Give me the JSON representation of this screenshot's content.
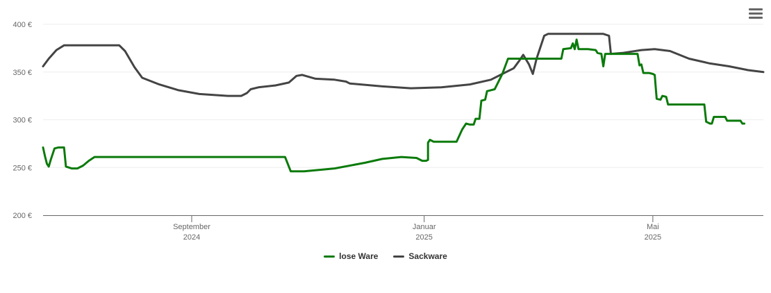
{
  "chart_data": {
    "type": "line",
    "xlim": [
      "2024-06-15",
      "2025-06-28"
    ],
    "ylim": [
      200,
      400
    ],
    "yticks": [
      {
        "value": 200,
        "label": "200 €"
      },
      {
        "value": 250,
        "label": "250 €"
      },
      {
        "value": 300,
        "label": "300 €"
      },
      {
        "value": 350,
        "label": "350 €"
      },
      {
        "value": 400,
        "label": "400 €"
      }
    ],
    "xticks": [
      {
        "date": "2024-09-01",
        "label1": "September",
        "label2": "2024"
      },
      {
        "date": "2025-01-01",
        "label1": "Januar",
        "label2": "2025"
      },
      {
        "date": "2025-05-01",
        "label1": "Mai",
        "label2": "2025"
      }
    ],
    "legend_position": "bottom-center",
    "series": [
      {
        "name": "lose Ware",
        "color": "#0a7a0a",
        "points": [
          [
            "2024-06-15",
            271
          ],
          [
            "2024-06-16",
            262
          ],
          [
            "2024-06-17",
            254
          ],
          [
            "2024-06-18",
            251
          ],
          [
            "2024-06-19",
            258
          ],
          [
            "2024-06-21",
            270
          ],
          [
            "2024-06-23",
            271
          ],
          [
            "2024-06-26",
            271
          ],
          [
            "2024-06-27",
            251
          ],
          [
            "2024-06-30",
            249
          ],
          [
            "2024-07-03",
            249
          ],
          [
            "2024-07-06",
            252
          ],
          [
            "2024-07-09",
            257
          ],
          [
            "2024-07-12",
            261
          ],
          [
            "2024-07-20",
            261
          ],
          [
            "2024-08-15",
            261
          ],
          [
            "2024-09-20",
            261
          ],
          [
            "2024-10-15",
            261
          ],
          [
            "2024-10-20",
            261
          ],
          [
            "2024-10-23",
            246
          ],
          [
            "2024-10-30",
            246
          ],
          [
            "2024-11-15",
            249
          ],
          [
            "2024-12-01",
            255
          ],
          [
            "2024-12-10",
            259
          ],
          [
            "2024-12-20",
            261
          ],
          [
            "2024-12-28",
            260
          ],
          [
            "2024-12-31",
            257
          ],
          [
            "2025-01-02",
            257
          ],
          [
            "2025-01-03",
            258
          ],
          [
            "2025-01-03",
            276
          ],
          [
            "2025-01-04",
            279
          ],
          [
            "2025-01-06",
            277
          ],
          [
            "2025-01-10",
            277
          ],
          [
            "2025-01-18",
            277
          ],
          [
            "2025-01-21",
            290
          ],
          [
            "2025-01-23",
            296
          ],
          [
            "2025-01-25",
            295
          ],
          [
            "2025-01-27",
            295
          ],
          [
            "2025-01-28",
            301
          ],
          [
            "2025-01-30",
            301
          ],
          [
            "2025-01-31",
            320
          ],
          [
            "2025-02-02",
            321
          ],
          [
            "2025-02-03",
            330
          ],
          [
            "2025-02-05",
            331
          ],
          [
            "2025-02-07",
            332
          ],
          [
            "2025-02-11",
            348
          ],
          [
            "2025-02-14",
            364
          ],
          [
            "2025-02-20",
            364
          ],
          [
            "2025-03-01",
            364
          ],
          [
            "2025-03-14",
            364
          ],
          [
            "2025-03-15",
            374
          ],
          [
            "2025-03-19",
            375
          ],
          [
            "2025-03-20",
            380
          ],
          [
            "2025-03-21",
            374
          ],
          [
            "2025-03-22",
            384
          ],
          [
            "2025-03-23",
            374
          ],
          [
            "2025-03-28",
            374
          ],
          [
            "2025-04-01",
            373
          ],
          [
            "2025-04-02",
            370
          ],
          [
            "2025-04-04",
            369
          ],
          [
            "2025-04-05",
            356
          ],
          [
            "2025-04-06",
            369
          ],
          [
            "2025-04-10",
            369
          ],
          [
            "2025-04-20",
            369
          ],
          [
            "2025-04-23",
            369
          ],
          [
            "2025-04-24",
            357
          ],
          [
            "2025-04-25",
            358
          ],
          [
            "2025-04-26",
            349
          ],
          [
            "2025-04-29",
            349
          ],
          [
            "2025-05-01",
            348
          ],
          [
            "2025-05-02",
            347
          ],
          [
            "2025-05-03",
            322
          ],
          [
            "2025-05-05",
            321
          ],
          [
            "2025-05-06",
            325
          ],
          [
            "2025-05-08",
            324
          ],
          [
            "2025-05-09",
            316
          ],
          [
            "2025-05-15",
            316
          ],
          [
            "2025-05-28",
            316
          ],
          [
            "2025-05-29",
            298
          ],
          [
            "2025-05-31",
            296
          ],
          [
            "2025-06-01",
            296
          ],
          [
            "2025-06-02",
            303
          ],
          [
            "2025-06-08",
            303
          ],
          [
            "2025-06-09",
            299
          ],
          [
            "2025-06-15",
            299
          ],
          [
            "2025-06-16",
            299
          ],
          [
            "2025-06-17",
            296
          ],
          [
            "2025-06-18",
            296
          ]
        ]
      },
      {
        "name": "Sackware",
        "color": "#444444",
        "points": [
          [
            "2024-06-15",
            356
          ],
          [
            "2024-06-18",
            364
          ],
          [
            "2024-06-22",
            373
          ],
          [
            "2024-06-26",
            378
          ],
          [
            "2024-07-15",
            378
          ],
          [
            "2024-07-25",
            378
          ],
          [
            "2024-07-28",
            372
          ],
          [
            "2024-08-02",
            355
          ],
          [
            "2024-08-06",
            344
          ],
          [
            "2024-08-15",
            337
          ],
          [
            "2024-08-25",
            331
          ],
          [
            "2024-09-05",
            327
          ],
          [
            "2024-09-20",
            325
          ],
          [
            "2024-09-27",
            325
          ],
          [
            "2024-09-30",
            328
          ],
          [
            "2024-10-02",
            332
          ],
          [
            "2024-10-06",
            334
          ],
          [
            "2024-10-15",
            336
          ],
          [
            "2024-10-22",
            339
          ],
          [
            "2024-10-26",
            346
          ],
          [
            "2024-10-29",
            347
          ],
          [
            "2024-11-05",
            343
          ],
          [
            "2024-11-15",
            342
          ],
          [
            "2024-11-21",
            340
          ],
          [
            "2024-11-23",
            338
          ],
          [
            "2024-12-10",
            335
          ],
          [
            "2024-12-25",
            333
          ],
          [
            "2025-01-10",
            334
          ],
          [
            "2025-01-25",
            337
          ],
          [
            "2025-02-05",
            342
          ],
          [
            "2025-02-12",
            349
          ],
          [
            "2025-02-17",
            354
          ],
          [
            "2025-02-20",
            362
          ],
          [
            "2025-02-22",
            368
          ],
          [
            "2025-02-25",
            358
          ],
          [
            "2025-02-27",
            348
          ],
          [
            "2025-03-01",
            364
          ],
          [
            "2025-03-05",
            388
          ],
          [
            "2025-03-07",
            390
          ],
          [
            "2025-03-20",
            390
          ],
          [
            "2025-04-05",
            390
          ],
          [
            "2025-04-08",
            388
          ],
          [
            "2025-04-09",
            369
          ],
          [
            "2025-04-15",
            370
          ],
          [
            "2025-04-25",
            373
          ],
          [
            "2025-05-02",
            374
          ],
          [
            "2025-05-10",
            372
          ],
          [
            "2025-05-20",
            364
          ],
          [
            "2025-05-31",
            359
          ],
          [
            "2025-06-10",
            356
          ],
          [
            "2025-06-20",
            352
          ],
          [
            "2025-06-28",
            350
          ]
        ]
      }
    ]
  }
}
